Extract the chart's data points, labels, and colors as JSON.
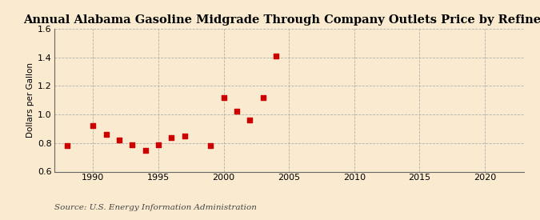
{
  "title": "Annual Alabama Gasoline Midgrade Through Company Outlets Price by Refiners",
  "ylabel": "Dollars per Gallon",
  "source": "Source: U.S. Energy Information Administration",
  "background_color": "#faebd0",
  "years": [
    1988,
    1990,
    1991,
    1992,
    1993,
    1994,
    1995,
    1996,
    1997,
    1999,
    2000,
    2001,
    2002,
    2003,
    2004
  ],
  "values": [
    0.78,
    0.92,
    0.86,
    0.82,
    0.79,
    0.75,
    0.79,
    0.84,
    0.85,
    0.78,
    1.12,
    1.02,
    0.96,
    1.12,
    1.41
  ],
  "marker_color": "#cc0000",
  "marker_size": 16,
  "xlim": [
    1987,
    2023
  ],
  "ylim": [
    0.6,
    1.6
  ],
  "xticks": [
    1990,
    1995,
    2000,
    2005,
    2010,
    2015,
    2020
  ],
  "yticks": [
    0.6,
    0.8,
    1.0,
    1.2,
    1.4,
    1.6
  ],
  "grid_color": "#aaaaaa",
  "title_fontsize": 10.5,
  "label_fontsize": 7.5,
  "tick_fontsize": 8,
  "source_fontsize": 7.5
}
